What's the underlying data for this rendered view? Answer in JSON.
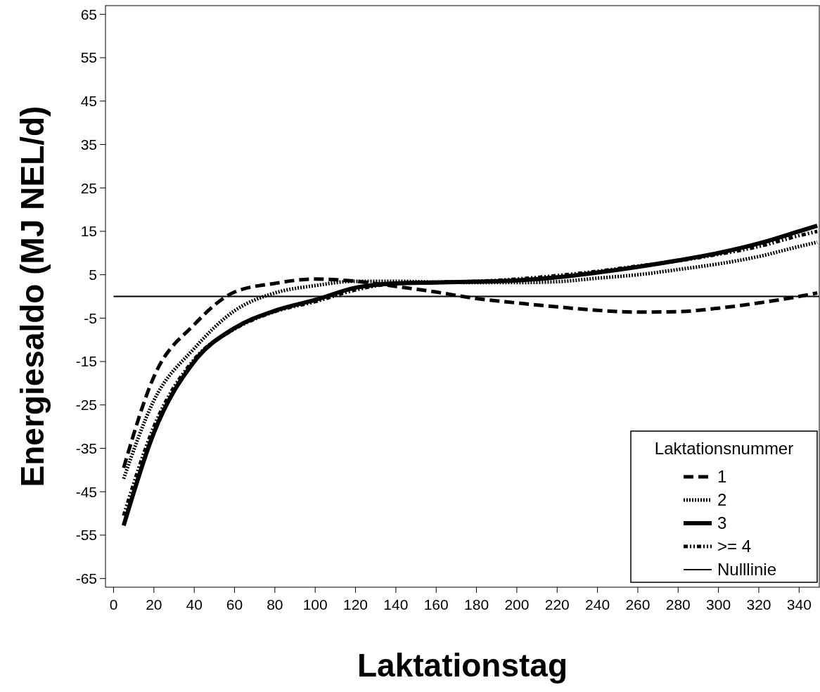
{
  "chart_data": {
    "type": "line",
    "xlabel": "Laktationstag",
    "ylabel": "Energiesaldo (MJ NEL/d)",
    "legend_title": "Laktationsnummer",
    "x": [
      5,
      20,
      40,
      60,
      80,
      100,
      120,
      140,
      160,
      180,
      200,
      220,
      240,
      260,
      280,
      300,
      320,
      340,
      349
    ],
    "series": [
      {
        "name": "1",
        "color": "#000000",
        "line_style": "dashed",
        "values": [
          -39.5,
          -18.5,
          -6.5,
          1,
          3,
          4,
          3.5,
          2.3,
          1,
          -0.5,
          -1.5,
          -2.4,
          -3.2,
          -3.6,
          -3.5,
          -2.7,
          -1.5,
          0,
          0.8
        ]
      },
      {
        "name": "2",
        "color": "#000000",
        "line_style": "dotted",
        "values": [
          -42,
          -24,
          -12,
          -3.3,
          0.8,
          2.5,
          3.5,
          3.5,
          3.3,
          3.2,
          3.2,
          3.4,
          4.2,
          5,
          6.2,
          7.5,
          9.2,
          11.5,
          12.5
        ]
      },
      {
        "name": "3",
        "color": "#000000",
        "line_style": "solid",
        "values": [
          -52.8,
          -31.4,
          -15,
          -7.3,
          -3.3,
          -0.8,
          2,
          3,
          3.2,
          3.4,
          3.7,
          4.4,
          5.5,
          6.8,
          8.3,
          10,
          12.2,
          15,
          16.3
        ]
      },
      {
        "name": ">= 4",
        "color": "#000000",
        "line_style": "dashdot",
        "values": [
          -50.5,
          -30,
          -14.5,
          -7.5,
          -3.5,
          -1.2,
          1.5,
          3,
          3.3,
          3.5,
          4,
          4.8,
          5.8,
          7,
          8.2,
          9.7,
          11.5,
          14,
          15
        ]
      }
    ],
    "ref_lines": [
      {
        "axis": "y",
        "value": 0,
        "label": "Nulllinie",
        "color": "#000000"
      }
    ],
    "xlim": [
      -4,
      350
    ],
    "ylim": [
      -67,
      67
    ],
    "xticks": [
      0,
      20,
      40,
      60,
      80,
      100,
      120,
      140,
      160,
      180,
      200,
      220,
      240,
      260,
      280,
      300,
      320,
      340
    ],
    "yticks": [
      -65,
      -55,
      -45,
      -35,
      -25,
      -15,
      -5,
      5,
      15,
      25,
      35,
      45,
      55,
      65
    ],
    "grid": false,
    "legend": "bottom right"
  }
}
